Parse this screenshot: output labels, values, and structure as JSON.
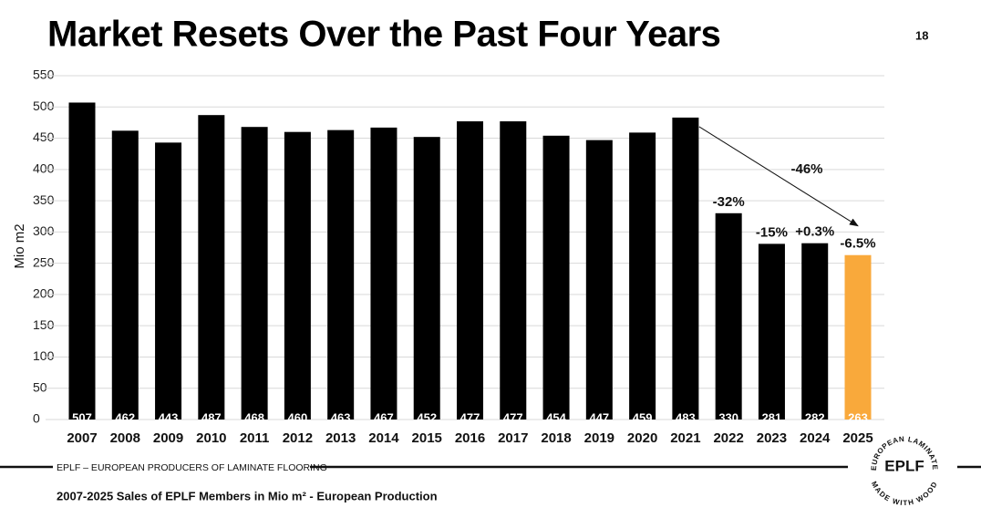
{
  "chart_data": {
    "type": "bar",
    "title": "Market Resets Over the Past Four Years",
    "ylabel": "Mio m2",
    "categories": [
      "2007",
      "2008",
      "2009",
      "2010",
      "2011",
      "2012",
      "2013",
      "2014",
      "2015",
      "2016",
      "2017",
      "2018",
      "2019",
      "2020",
      "2021",
      "2022",
      "2023",
      "2024",
      "2025"
    ],
    "values": [
      507,
      462,
      443,
      487,
      468,
      460,
      463,
      467,
      452,
      477,
      477,
      454,
      447,
      459,
      483,
      330,
      281,
      282,
      263
    ],
    "colors": [
      "#000000",
      "#000000",
      "#000000",
      "#000000",
      "#000000",
      "#000000",
      "#000000",
      "#000000",
      "#000000",
      "#000000",
      "#000000",
      "#000000",
      "#000000",
      "#000000",
      "#000000",
      "#000000",
      "#000000",
      "#000000",
      "#f9a93b"
    ],
    "change_labels": [
      null,
      null,
      null,
      null,
      null,
      null,
      null,
      null,
      null,
      null,
      null,
      null,
      null,
      null,
      null,
      "-32%",
      "-15%",
      "+0.3%",
      "-6.5%"
    ],
    "trend_annotation": "-46%",
    "ylim": [
      0,
      550
    ],
    "yticks": [
      0,
      50,
      100,
      150,
      200,
      250,
      300,
      350,
      400,
      450,
      500,
      550
    ],
    "grid": true
  },
  "slide": {
    "page_number": "18",
    "footer": "EPLF – EUROPEAN PRODUCERS OF LAMINATE FLOORING",
    "caption": "2007-2025 Sales of EPLF Members in Mio m² - European Production",
    "logo": {
      "name": "EPLF",
      "top_text": "EUROPEAN LAMINATE",
      "bottom_text": "MADE WITH WOOD"
    }
  }
}
